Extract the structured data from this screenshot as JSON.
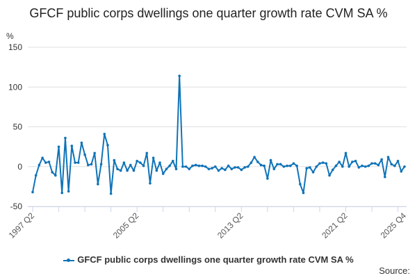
{
  "chart_data": {
    "type": "line",
    "title": "GFCF public corps dwellings one quarter growth rate CVM SA %",
    "ylabel": "%",
    "xlabel": "",
    "ylim": [
      -50,
      150
    ],
    "yticks": [
      150,
      100,
      50,
      0,
      -50
    ],
    "x_start": "1997 Q2",
    "xtick_labels": [
      {
        "index": 0,
        "label": "1997 Q2"
      },
      {
        "index": 32,
        "label": "2005 Q2"
      },
      {
        "index": 64,
        "label": "2013 Q2"
      },
      {
        "index": 96,
        "label": "2021 Q2"
      },
      {
        "index": 114,
        "label": "2025 Q4"
      }
    ],
    "grid": true,
    "legend_placement": "bottom",
    "series": [
      {
        "name": "GFCF public corps dwellings one quarter growth rate CVM SA %",
        "color": "#0f73b8",
        "values": [
          -32,
          -11,
          2,
          11,
          5,
          6,
          -7,
          -11,
          25,
          -33,
          36,
          -31,
          26,
          5,
          5,
          30,
          15,
          2,
          3,
          17,
          -22,
          3,
          41,
          27,
          -34,
          8,
          -3,
          -5,
          5,
          -5,
          2,
          -5,
          7,
          5,
          1,
          17,
          -21,
          11,
          -5,
          5,
          -9,
          -3,
          1,
          7,
          -3,
          114,
          0,
          0,
          -3,
          1,
          2,
          1,
          1,
          0,
          -3,
          -2,
          0,
          -5,
          -2,
          -4,
          1,
          -3,
          -1,
          -1,
          -4,
          -1,
          0,
          5,
          12,
          6,
          2,
          1,
          -15,
          8,
          -3,
          3,
          3,
          0,
          1,
          1,
          4,
          1,
          -22,
          -33,
          -2,
          -1,
          -7,
          0,
          4,
          5,
          4,
          -11,
          -4,
          1,
          6,
          0,
          17,
          0,
          6,
          7,
          -1,
          1,
          0,
          1,
          4,
          4,
          2,
          9,
          -13,
          12,
          3,
          1,
          7,
          -6,
          0
        ]
      }
    ]
  },
  "source_label": "Source:"
}
